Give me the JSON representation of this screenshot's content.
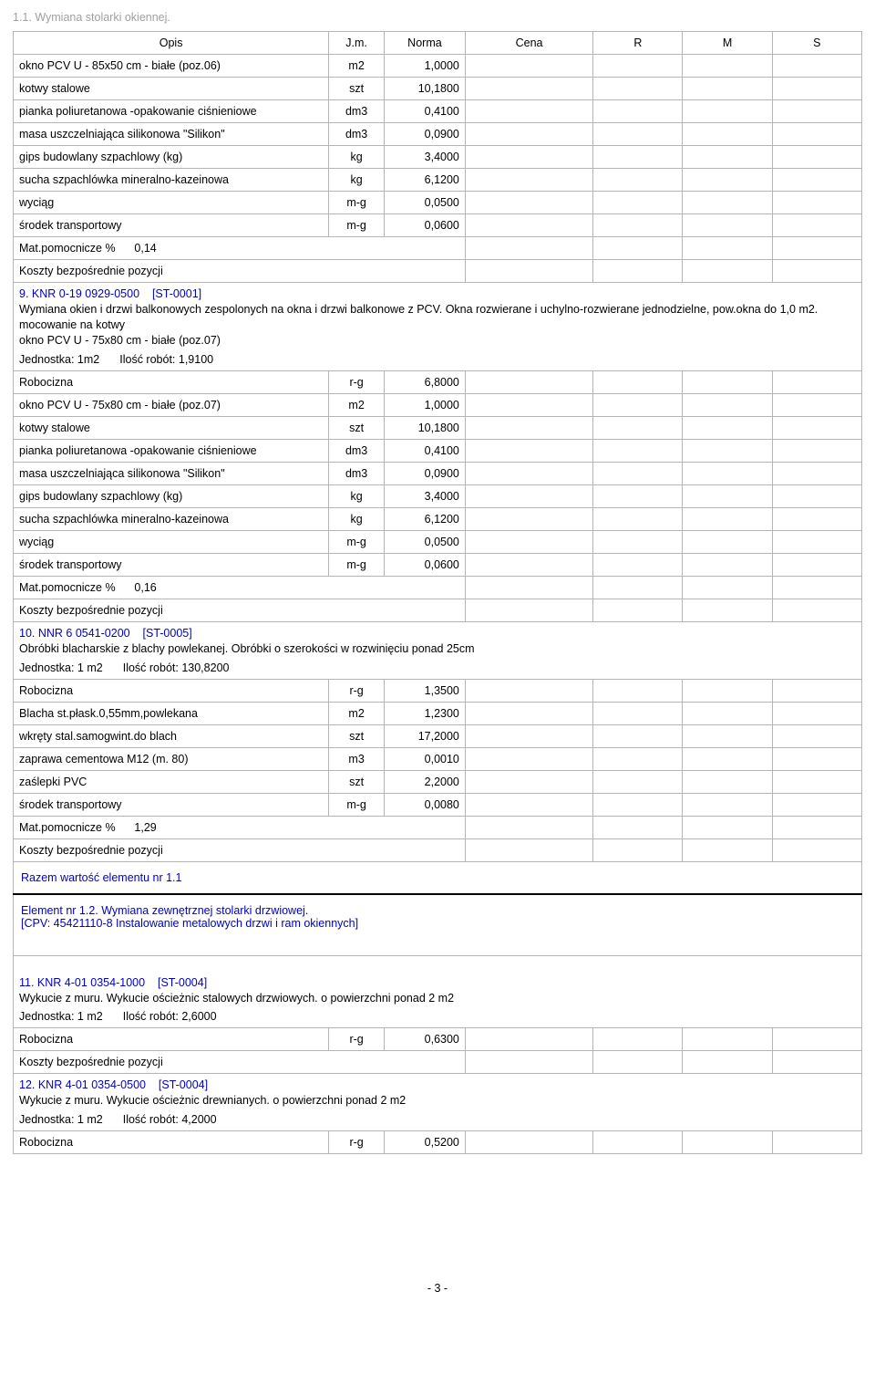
{
  "page_header": "1.1. Wymiana stolarki okiennej.",
  "columns": {
    "opis": "Opis",
    "jm": "J.m.",
    "norma": "Norma",
    "cena": "Cena",
    "r": "R",
    "m": "M",
    "s": "S"
  },
  "intro_rows": [
    {
      "opis": "okno PCV U - 85x50 cm - białe (poz.06)",
      "jm": "m2",
      "norma": "1,0000"
    },
    {
      "opis": "kotwy stalowe",
      "jm": "szt",
      "norma": "10,1800"
    },
    {
      "opis": "pianka poliuretanowa -opakowanie ciśnieniowe",
      "jm": "dm3",
      "norma": "0,4100"
    },
    {
      "opis": "masa uszczelniająca silikonowa \"Silikon\"",
      "jm": "dm3",
      "norma": "0,0900"
    },
    {
      "opis": "gips budowlany szpachlowy (kg)",
      "jm": "kg",
      "norma": "3,4000"
    },
    {
      "opis": "sucha szpachlówka mineralno-kazeinowa",
      "jm": "kg",
      "norma": "6,1200"
    },
    {
      "opis": "wyciąg",
      "jm": "m-g",
      "norma": "0,0500"
    },
    {
      "opis": "środek transportowy",
      "jm": "m-g",
      "norma": "0,0600"
    }
  ],
  "intro_mat": "Mat.pomocnicze %      0,14",
  "koszty_label": "Koszty bezpośrednie pozycji",
  "sec9": {
    "code": "9. KNR 0-19  0929-0500",
    "st": "[ST-0001]",
    "desc": "Wymiana okien i drzwi balkonowych zespolonych na okna i drzwi balkonowe z PCV. Okna rozwierane i uchylno-rozwierane jednodzielne, pow.okna do 1,0 m2. mocowanie na kotwy\nokno PCV U - 75x80 cm - białe (poz.07)",
    "jednostka": "Jednostka: 1m2",
    "ilosc": "Ilość robót: 1,9100",
    "rows": [
      {
        "opis": "Robocizna",
        "jm": "r-g",
        "norma": "6,8000"
      },
      {
        "opis": "okno PCV U - 75x80 cm - białe (poz.07)",
        "jm": "m2",
        "norma": "1,0000"
      },
      {
        "opis": "kotwy stalowe",
        "jm": "szt",
        "norma": "10,1800"
      },
      {
        "opis": "pianka poliuretanowa -opakowanie ciśnieniowe",
        "jm": "dm3",
        "norma": "0,4100"
      },
      {
        "opis": "masa uszczelniająca silikonowa \"Silikon\"",
        "jm": "dm3",
        "norma": "0,0900"
      },
      {
        "opis": "gips budowlany szpachlowy (kg)",
        "jm": "kg",
        "norma": "3,4000"
      },
      {
        "opis": "sucha szpachlówka mineralno-kazeinowa",
        "jm": "kg",
        "norma": "6,1200"
      },
      {
        "opis": "wyciąg",
        "jm": "m-g",
        "norma": "0,0500"
      },
      {
        "opis": "środek transportowy",
        "jm": "m-g",
        "norma": "0,0600"
      }
    ],
    "mat": "Mat.pomocnicze %      0,16"
  },
  "sec10": {
    "code": "10. NNR 6  0541-0200",
    "st": "[ST-0005]",
    "desc": "Obróbki blacharskie z blachy powlekanej. Obróbki o szerokości w rozwinięciu ponad 25cm",
    "jednostka": "Jednostka: 1 m2",
    "ilosc": "Ilość robót: 130,8200",
    "rows": [
      {
        "opis": "Robocizna",
        "jm": "r-g",
        "norma": "1,3500"
      },
      {
        "opis": "Blacha st.płask.0,55mm,powlekana",
        "jm": "m2",
        "norma": "1,2300"
      },
      {
        "opis": "wkręty stal.samogwint.do blach",
        "jm": "szt",
        "norma": "17,2000"
      },
      {
        "opis": "zaprawa cementowa M12 (m. 80)",
        "jm": "m3",
        "norma": "0,0010"
      },
      {
        "opis": "zaślepki PVC",
        "jm": "szt",
        "norma": "2,2000"
      },
      {
        "opis": "środek transportowy",
        "jm": "m-g",
        "norma": "0,0080"
      }
    ],
    "mat": "Mat.pomocnicze %      1,29"
  },
  "razem11": "Razem wartość elementu nr 1.1",
  "element12": {
    "line1": "Element nr 1.2. Wymiana  zewnętrznej stolarki drzwiowej.",
    "line2": "[CPV: 45421110-8 Instalowanie metalowych drzwi i ram okiennych]"
  },
  "sec11": {
    "code": "11. KNR 4-01  0354-1000",
    "st": "[ST-0004]",
    "desc": "Wykucie z muru. Wykucie ościeżnic stalowych drzwiowych. o powierzchni ponad 2 m2",
    "jednostka": "Jednostka: 1 m2",
    "ilosc": "Ilość robót: 2,6000",
    "rows": [
      {
        "opis": "Robocizna",
        "jm": "r-g",
        "norma": "0,6300"
      }
    ]
  },
  "sec12": {
    "code": "12. KNR 4-01  0354-0500",
    "st": "[ST-0004]",
    "desc": "Wykucie z muru. Wykucie ościeżnic drewnianych. o powierzchni ponad 2 m2",
    "jednostka": "Jednostka: 1 m2",
    "ilosc": "Ilość robót: 4,2000",
    "rows": [
      {
        "opis": "Robocizna",
        "jm": "r-g",
        "norma": "0,5200"
      }
    ]
  },
  "footer": "- 3 -",
  "style": {
    "accent_color": "#0000c8",
    "muted_color": "#a0a0a0",
    "border_color": "#b5b5b5",
    "thick_border": "#000000",
    "base_fontsize": 12.5
  }
}
